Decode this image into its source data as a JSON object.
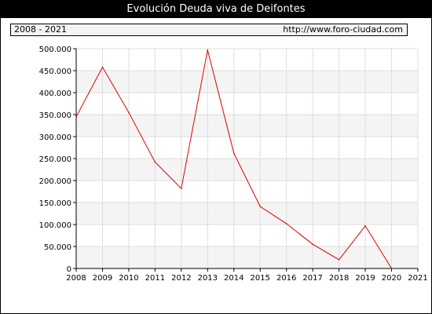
{
  "header": {
    "title": "Evolución Deuda viva de Deifontes",
    "range": "2008 - 2021",
    "url": "http://www.foro-ciudad.com"
  },
  "chart_data": {
    "type": "line",
    "title": "Evolución Deuda viva de Deifontes",
    "xlabel": "",
    "ylabel": "",
    "x_ticks": [
      "2008",
      "2009",
      "2010",
      "2011",
      "2012",
      "2013",
      "2014",
      "2015",
      "2016",
      "2017",
      "2018",
      "2019",
      "2020",
      "2021"
    ],
    "y_ticks": [
      "0",
      "50.000",
      "100.000",
      "150.000",
      "200.000",
      "250.000",
      "300.000",
      "350.000",
      "400.000",
      "450.000",
      "500.000"
    ],
    "xlim": [
      2008,
      2021
    ],
    "ylim": [
      0,
      500000
    ],
    "grid": true,
    "line_color": "#dd0000",
    "series": [
      {
        "x": [
          2008,
          2009,
          2010,
          2011,
          2012,
          2013,
          2014,
          2015,
          2016,
          2017,
          2018,
          2019,
          2020
        ],
        "values": [
          345000,
          458000,
          355000,
          242000,
          182000,
          497000,
          262000,
          141000,
          102000,
          55000,
          20000,
          97000,
          0
        ]
      }
    ]
  }
}
